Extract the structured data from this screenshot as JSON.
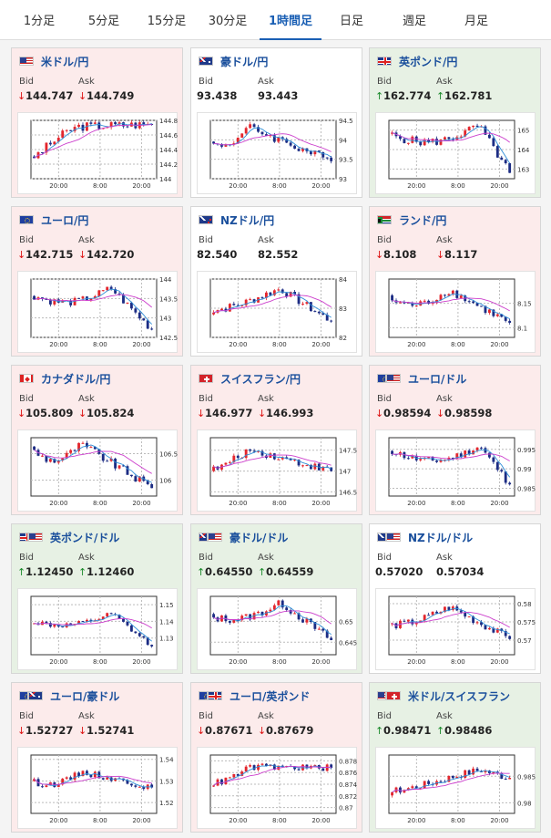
{
  "tabs": [
    {
      "label": "1分足",
      "active": false
    },
    {
      "label": "5分足",
      "active": false
    },
    {
      "label": "15分足",
      "active": false
    },
    {
      "label": "30分足",
      "active": false
    },
    {
      "label": "1時間足",
      "active": true
    },
    {
      "label": "日足",
      "active": false
    },
    {
      "label": "週足",
      "active": false
    },
    {
      "label": "月足",
      "active": false
    }
  ],
  "bid_label": "Bid",
  "ask_label": "Ask",
  "colors": {
    "up_bg": "#e7f1e4",
    "down_bg": "#fcebeb",
    "bull": "#e3262d",
    "bear": "#1c2c84",
    "ma1": "#2f8fd8",
    "ma2": "#cc3fcc",
    "link": "#1a4f9c"
  },
  "cards": [
    {
      "name": "米ドル/円",
      "flag": "us",
      "trend": "down",
      "bid": "144.747",
      "ask": "144.749",
      "chart": {
        "x_ticks": [
          "20:00",
          "8:00",
          "20:00"
        ],
        "y_ticks": [
          "144.8",
          "144.6",
          "144.4",
          "144.2",
          "144"
        ],
        "ylim": [
          144.0,
          144.8
        ],
        "start": 144.25,
        "end": 144.75,
        "min": 144.1,
        "max": 144.8
      }
    },
    {
      "name": "豪ドル/円",
      "flag": "au",
      "trend": "flat",
      "bid": "93.438",
      "ask": "93.443",
      "chart": {
        "x_ticks": [
          "20:00",
          "8:00",
          "20:00"
        ],
        "y_ticks": [
          "94.5",
          "94",
          "93.5",
          "93"
        ],
        "ylim": [
          93.0,
          94.5
        ],
        "start": 93.9,
        "end": 93.45,
        "min": 93.1,
        "max": 94.4
      }
    },
    {
      "name": "英ポンド/円",
      "flag": "gb",
      "trend": "up",
      "bid": "162.774",
      "ask": "162.781",
      "chart": {
        "x_ticks": [
          "20:00",
          "8:00",
          "20:00"
        ],
        "y_ticks": [
          "165",
          "164",
          "163"
        ],
        "ylim": [
          162.5,
          165.5
        ],
        "start": 164.8,
        "end": 162.8,
        "min": 162.8,
        "max": 165.3
      }
    },
    {
      "name": "ユーロ/円",
      "flag": "eu",
      "trend": "down",
      "bid": "142.715",
      "ask": "142.720",
      "chart": {
        "x_ticks": [
          "20:00",
          "8:00",
          "20:00"
        ],
        "y_ticks": [
          "144",
          "143.5",
          "143",
          "142.5"
        ],
        "ylim": [
          142.5,
          144.0
        ],
        "start": 143.6,
        "end": 142.7,
        "min": 142.7,
        "max": 143.8
      }
    },
    {
      "name": "NZドル/円",
      "flag": "nz",
      "trend": "flat",
      "bid": "82.540",
      "ask": "82.552",
      "chart": {
        "x_ticks": [
          "20:00",
          "8:00",
          "20:00"
        ],
        "y_ticks": [
          "84",
          "83",
          "82"
        ],
        "ylim": [
          82.0,
          84.0
        ],
        "start": 82.9,
        "end": 82.55,
        "min": 82.2,
        "max": 83.8
      }
    },
    {
      "name": "ランド/円",
      "flag": "za",
      "trend": "down",
      "bid": "8.108",
      "ask": "8.117",
      "chart": {
        "x_ticks": [
          "20:00",
          "8:00",
          "20:00"
        ],
        "y_ticks": [
          "8.15",
          "8.1"
        ],
        "ylim": [
          8.08,
          8.2
        ],
        "start": 8.16,
        "end": 8.11,
        "min": 8.09,
        "max": 8.18
      }
    },
    {
      "name": "カナダドル/円",
      "flag": "ca",
      "trend": "down",
      "bid": "105.809",
      "ask": "105.824",
      "chart": {
        "x_ticks": [
          "20:00",
          "8:00",
          "20:00"
        ],
        "y_ticks": [
          "106.5",
          "106"
        ],
        "ylim": [
          105.7,
          106.8
        ],
        "start": 106.6,
        "end": 105.85,
        "min": 105.8,
        "max": 106.7
      }
    },
    {
      "name": "スイスフラン/円",
      "flag": "ch",
      "trend": "down",
      "bid": "146.977",
      "ask": "146.993",
      "chart": {
        "x_ticks": [
          "20:00",
          "8:00",
          "20:00"
        ],
        "y_ticks": [
          "147.5",
          "147",
          "146.5"
        ],
        "ylim": [
          146.4,
          147.8
        ],
        "start": 147.0,
        "end": 147.0,
        "min": 146.6,
        "max": 147.6
      }
    },
    {
      "name": "ユーロ/ドル",
      "flag": "eu-us",
      "trend": "down",
      "bid": "0.98594",
      "ask": "0.98598",
      "chart": {
        "x_ticks": [
          "20:00",
          "8:00",
          "20:00"
        ],
        "y_ticks": [
          "0.995",
          "0.99",
          "0.985"
        ],
        "ylim": [
          0.983,
          0.998
        ],
        "start": 0.995,
        "end": 0.986,
        "min": 0.985,
        "max": 0.996
      }
    },
    {
      "name": "英ポンド/ドル",
      "flag": "gb-us",
      "trend": "up",
      "bid": "1.12450",
      "ask": "1.12460",
      "chart": {
        "x_ticks": [
          "20:00",
          "8:00",
          "20:00"
        ],
        "y_ticks": [
          "1.15",
          "1.14",
          "1.13"
        ],
        "ylim": [
          1.12,
          1.155
        ],
        "start": 1.14,
        "end": 1.125,
        "min": 1.125,
        "max": 1.145
      }
    },
    {
      "name": "豪ドル/ドル",
      "flag": "au-us",
      "trend": "up",
      "bid": "0.64550",
      "ask": "0.64559",
      "chart": {
        "x_ticks": [
          "20:00",
          "8:00",
          "20:00"
        ],
        "y_ticks": [
          "0.65",
          "0.645"
        ],
        "ylim": [
          0.642,
          0.656
        ],
        "start": 0.651,
        "end": 0.6455,
        "min": 0.644,
        "max": 0.655
      }
    },
    {
      "name": "NZドル/ドル",
      "flag": "nz-us",
      "trend": "flat",
      "bid": "0.57020",
      "ask": "0.57034",
      "chart": {
        "x_ticks": [
          "20:00",
          "8:00",
          "20:00"
        ],
        "y_ticks": [
          "0.58",
          "0.575",
          "0.57"
        ],
        "ylim": [
          0.566,
          0.582
        ],
        "start": 0.574,
        "end": 0.5703,
        "min": 0.568,
        "max": 0.58
      }
    },
    {
      "name": "ユーロ/豪ドル",
      "flag": "eu-au",
      "trend": "down",
      "bid": "1.52727",
      "ask": "1.52741",
      "chart": {
        "x_ticks": [
          "20:00",
          "8:00",
          "20:00"
        ],
        "y_ticks": [
          "1.54",
          "1.53",
          "1.52"
        ],
        "ylim": [
          1.515,
          1.542
        ],
        "start": 1.53,
        "end": 1.527,
        "min": 1.518,
        "max": 1.535
      }
    },
    {
      "name": "ユーロ/英ポンド",
      "flag": "eu-gb",
      "trend": "down",
      "bid": "0.87671",
      "ask": "0.87679",
      "chart": {
        "x_ticks": [
          "20:00",
          "8:00",
          "20:00"
        ],
        "y_ticks": [
          "0.878",
          "0.876",
          "0.874",
          "0.872",
          "0.87"
        ],
        "ylim": [
          0.869,
          0.879
        ],
        "start": 0.874,
        "end": 0.8768,
        "min": 0.871,
        "max": 0.8775
      }
    },
    {
      "name": "米ドル/スイスフラン",
      "flag": "us-ch",
      "trend": "up",
      "bid": "0.98471",
      "ask": "0.98486",
      "chart": {
        "x_ticks": [
          "20:00",
          "8:00",
          "20:00"
        ],
        "y_ticks": [
          "0.985",
          "0.98"
        ],
        "ylim": [
          0.978,
          0.989
        ],
        "start": 0.982,
        "end": 0.9847,
        "min": 0.979,
        "max": 0.987
      }
    }
  ]
}
